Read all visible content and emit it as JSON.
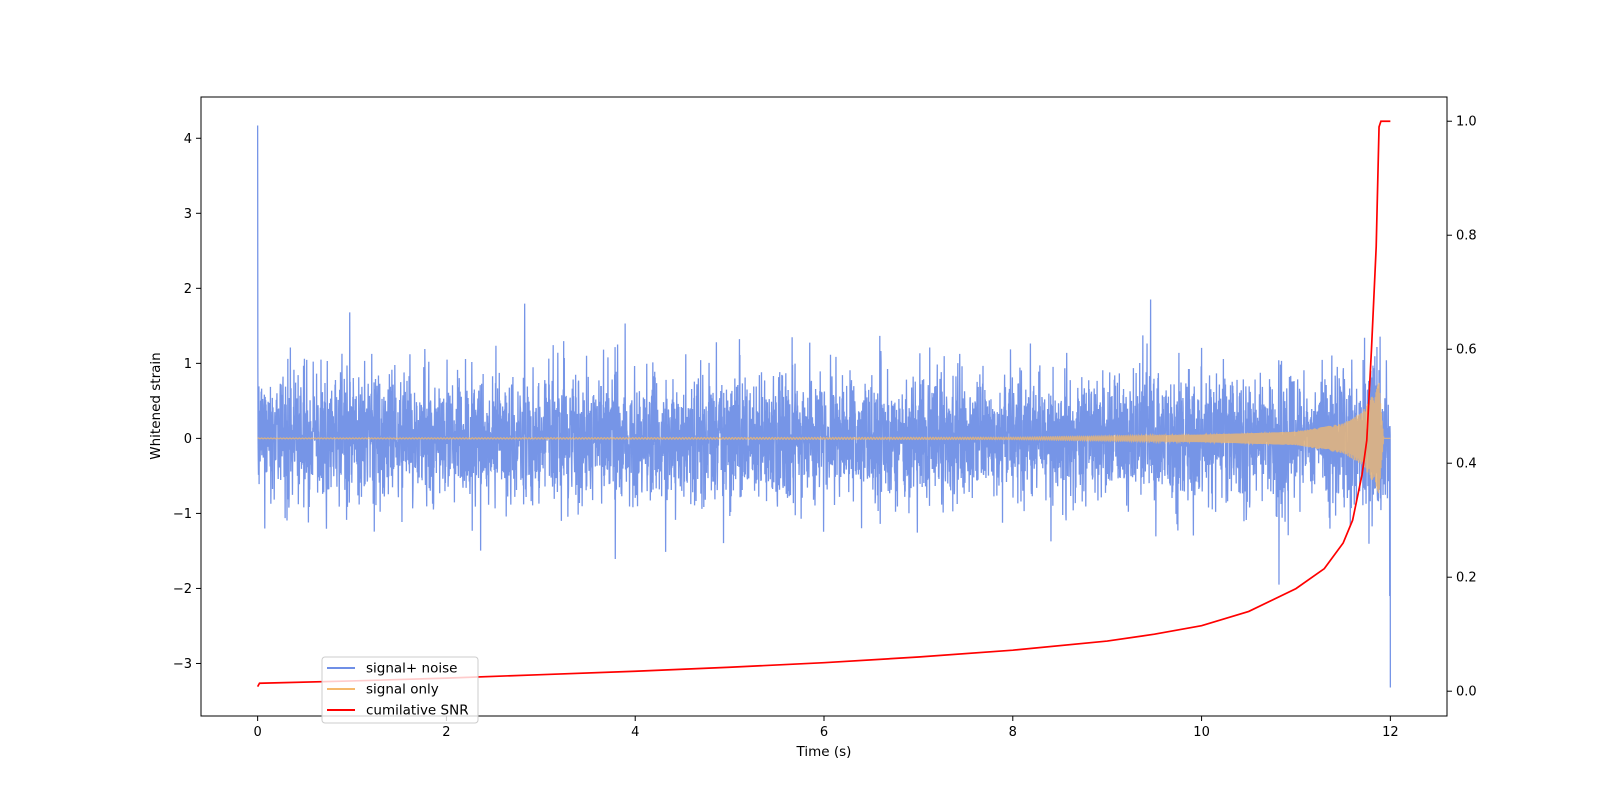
{
  "chart_data": {
    "type": "line",
    "xlabel": "Time (s)",
    "ylabel": "Whitened strain",
    "ylabel_right": "",
    "xlim": [
      -0.6,
      12.6
    ],
    "ylim": [
      -3.7,
      4.55
    ],
    "ylim_right": [
      -0.0435,
      1.0425
    ],
    "x_ticks": [
      0,
      2,
      4,
      6,
      8,
      10,
      12
    ],
    "x_tick_labels": [
      "0",
      "2",
      "4",
      "6",
      "8",
      "10",
      "12"
    ],
    "y_ticks": [
      -3,
      -2,
      -1,
      0,
      1,
      2,
      3,
      4
    ],
    "y_tick_labels": [
      "−3",
      "−2",
      "−1",
      "0",
      "1",
      "2",
      "3",
      "4"
    ],
    "y_right_ticks": [
      0.0,
      0.2,
      0.4,
      0.6,
      0.8,
      1.0
    ],
    "y_right_tick_labels": [
      "0.0",
      "0.2",
      "0.4",
      "0.6",
      "0.8",
      "1.0"
    ],
    "grid": false,
    "legend_position": "lower-left",
    "series": [
      {
        "name": "signal+ noise",
        "axis": "left",
        "color": "#6f8fe6",
        "description_of_values": "whitened noise of std ~0.5 spanning t=0..12 s with a spike to 4.17 at t=0 and dips to about -3.3 near t=12",
        "x_range": [
          0,
          12
        ],
        "y_peak_max": 4.17,
        "y_peak_min": -3.32,
        "y_std": 0.5
      },
      {
        "name": "signal only",
        "axis": "left",
        "color": "#f5b96b",
        "x_range": [
          0,
          12
        ],
        "chirp_frequency_hz": [
          30,
          130
        ],
        "amplitude_points": [
          [
            0,
            0.005
          ],
          [
            8,
            0.015
          ],
          [
            10,
            0.05
          ],
          [
            11,
            0.09
          ],
          [
            11.5,
            0.2
          ],
          [
            11.7,
            0.35
          ],
          [
            11.8,
            0.55
          ],
          [
            11.85,
            0.7
          ],
          [
            11.88,
            0.75
          ],
          [
            11.9,
            0.4
          ],
          [
            11.93,
            0.0
          ],
          [
            12,
            0.0
          ]
        ]
      },
      {
        "name": "cumilative SNR",
        "axis": "right",
        "color": "#ff0000",
        "x": [
          0,
          0.02,
          1,
          2,
          3,
          4,
          5,
          6,
          7,
          8,
          9,
          9.5,
          10,
          10.5,
          11,
          11.3,
          11.5,
          11.6,
          11.7,
          11.75,
          11.8,
          11.85,
          11.88,
          11.9,
          12.0
        ],
        "y": [
          0.008,
          0.014,
          0.018,
          0.023,
          0.029,
          0.035,
          0.042,
          0.05,
          0.06,
          0.072,
          0.088,
          0.1,
          0.115,
          0.14,
          0.18,
          0.215,
          0.26,
          0.3,
          0.38,
          0.44,
          0.6,
          0.78,
          0.99,
          1.0,
          1.0
        ]
      }
    ]
  }
}
